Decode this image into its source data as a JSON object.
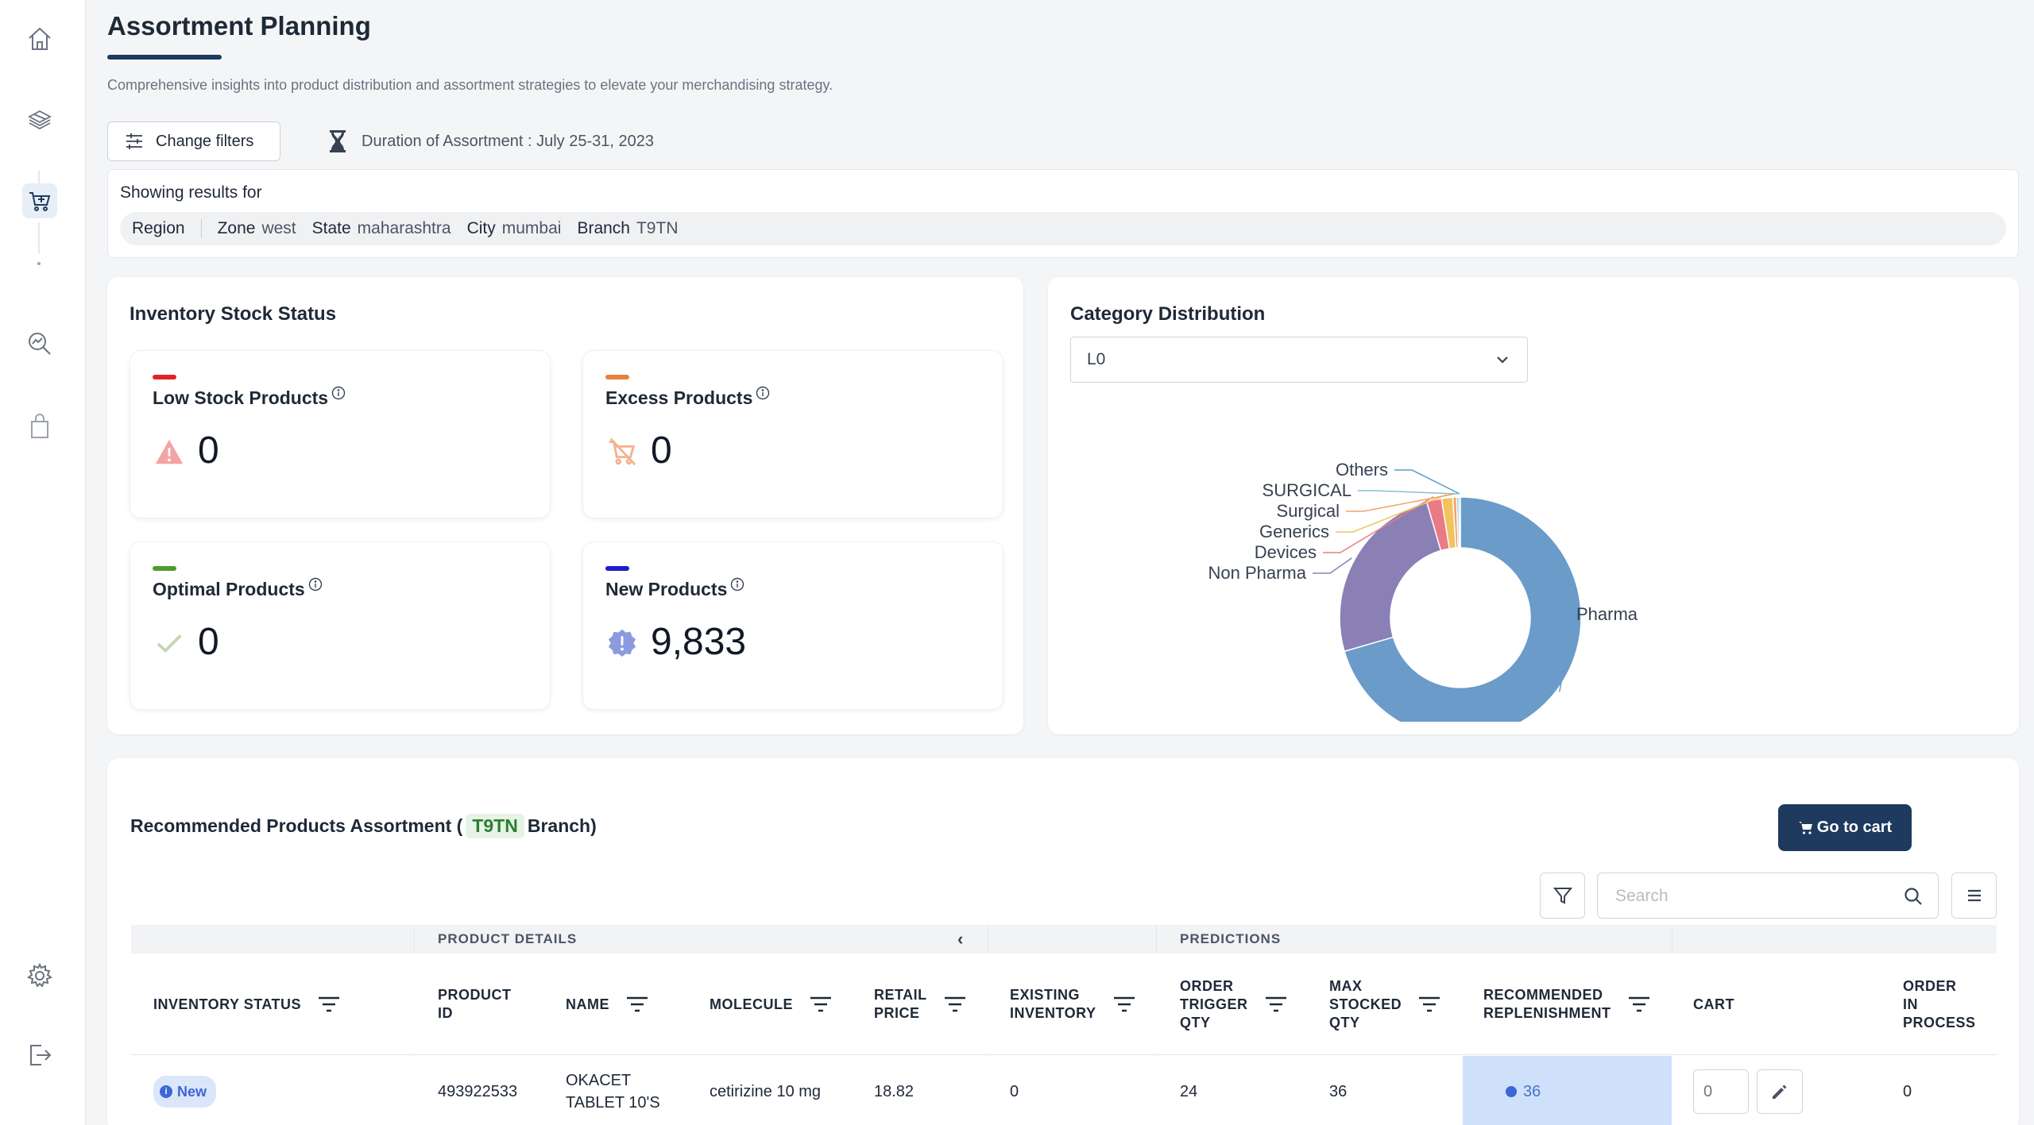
{
  "page": {
    "title": "Assortment Planning",
    "description": "Comprehensive insights into product distribution and assortment strategies to elevate your merchandising strategy."
  },
  "sidebar": {
    "items": [
      {
        "icon": "home-icon"
      },
      {
        "icon": "layers-icon"
      },
      {
        "icon": "cart-icon",
        "active": true
      },
      {
        "icon": "analytics-search-icon"
      },
      {
        "icon": "shopping-bag-icon"
      },
      {
        "icon": "settings-icon"
      },
      {
        "icon": "logout-icon"
      }
    ]
  },
  "filters": {
    "change_label": "Change filters",
    "duration": "Duration of Assortment : July 25-31, 2023"
  },
  "results": {
    "label": "Showing results for",
    "chips": [
      {
        "key": "Region",
        "value": ""
      },
      {
        "key": "Zone",
        "value": "west"
      },
      {
        "key": "State",
        "value": "maharashtra"
      },
      {
        "key": "City",
        "value": "mumbai"
      },
      {
        "key": "Branch",
        "value": "T9TN"
      }
    ]
  },
  "inventory": {
    "title": "Inventory Stock Status",
    "cards": [
      {
        "label": "Low Stock Products",
        "value": "0",
        "color": "#e02424"
      },
      {
        "label": "Excess Products",
        "value": "0",
        "color": "#e8833a"
      },
      {
        "label": "Optimal Products",
        "value": "0",
        "color": "#4f9d2d"
      },
      {
        "label": "New Products",
        "value": "9,833",
        "color": "#1e1ec8"
      }
    ]
  },
  "category": {
    "title": "Category Distribution",
    "select_value": "L0"
  },
  "chart_data": {
    "type": "pie",
    "variant": "donut",
    "categories": [
      "Pharma",
      "Non Pharma",
      "Devices",
      "Generics",
      "Surgical",
      "SURGICAL",
      "Others"
    ],
    "values": [
      70.5,
      25.0,
      2.0,
      1.5,
      0.5,
      0.3,
      0.2
    ],
    "colors": [
      "#6a9bc9",
      "#8a80b5",
      "#e97b86",
      "#f3c35f",
      "#f2a36a",
      "#86c1d3",
      "#5a9cc4"
    ]
  },
  "recommended": {
    "title_prefix": "Recommended Products Assortment (",
    "branch": "T9TN",
    "title_suffix": "Branch)",
    "cart_button": "Go to cart",
    "search_placeholder": "Search"
  },
  "table": {
    "groups": {
      "product_details": "PRODUCT DETAILS",
      "collapse": "‹",
      "predictions": "PREDICTIONS"
    },
    "headers": {
      "inventory_status": "INVENTORY STATUS",
      "product_id": "PRODUCT\nID",
      "name": "NAME",
      "molecule": "MOLECULE",
      "retail_price": "RETAIL\nPRICE",
      "existing_inventory": "EXISTING\nINVENTORY",
      "order_trigger_qty": "ORDER\nTRIGGER\nQTY",
      "max_stocked_qty": "MAX\nSTOCKED\nQTY",
      "recommended_replenishment": "RECOMMENDED\nREPLENISHMENT",
      "cart": "CART",
      "order_in_process": "ORDER\nIN\nPROCESS"
    },
    "rows": [
      {
        "status": "New",
        "product_id": "493922533",
        "name": "OKACET\nTABLET 10'S",
        "molecule": "cetirizine 10 mg",
        "retail_price": "18.82",
        "existing_inventory": "0",
        "order_trigger_qty": "24",
        "max_stocked_qty": "36",
        "recommended_replenishment": "36",
        "cart_qty": "0",
        "order_in_process": "0"
      }
    ]
  }
}
